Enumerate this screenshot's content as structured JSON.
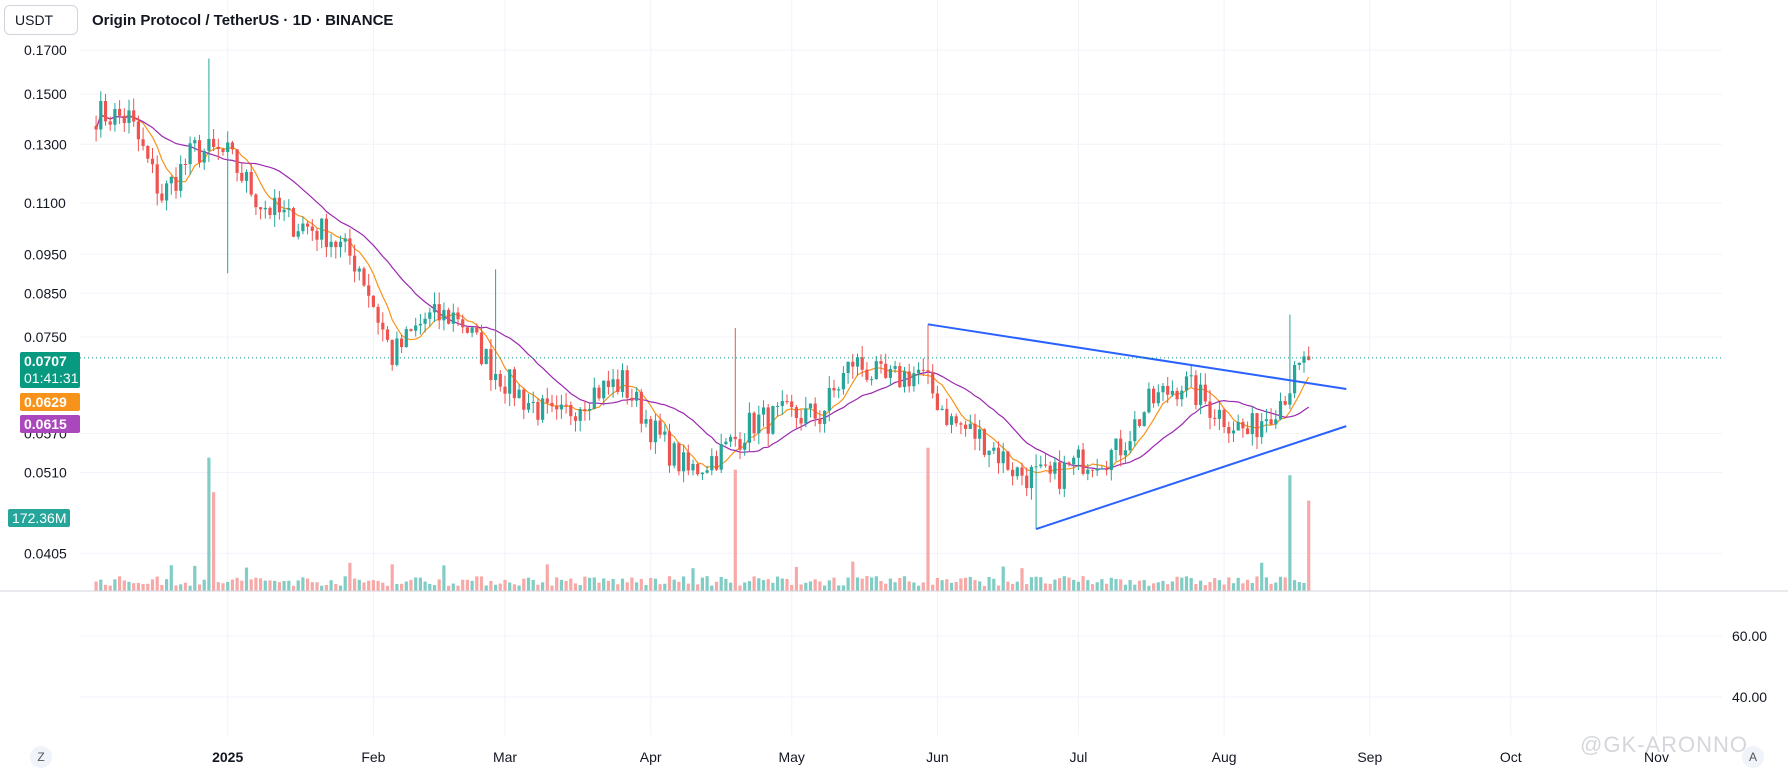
{
  "header": {
    "quote_currency": "USDT",
    "title": "Origin Protocol / TetherUS · 1D · BINANCE"
  },
  "watermark": "@GK-ARONNO",
  "controls": {
    "zoom_label": "Z",
    "auto_label": "A"
  },
  "badges": {
    "last_price": "0.0707",
    "countdown": "01:41:31",
    "ma_fast": "0.0629",
    "ma_slow": "0.0615",
    "volume": "172.36M"
  },
  "colors": {
    "up": "#26a69a",
    "down": "#ef5350",
    "ma_fast": "#f7931a",
    "ma_slow": "#9c27b0",
    "trendline": "#2962ff",
    "last_price": "#089981",
    "volume_up": "#7fcdc4",
    "volume_down": "#f7a9a7"
  },
  "chart_data": {
    "type": "candlestick",
    "symbol": "Origin Protocol / TetherUS",
    "interval": "1D",
    "exchange": "BINANCE",
    "price_axis_ticks": [
      "0.1700",
      "0.1500",
      "0.1300",
      "0.1100",
      "0.0950",
      "0.0850",
      "0.0750",
      "0.0570",
      "0.0510",
      "0.0405"
    ],
    "oscillator_axis_ticks": [
      "60.00",
      "40.00"
    ],
    "time_axis_ticks": [
      "2025",
      "Feb",
      "Mar",
      "Apr",
      "May",
      "Jun",
      "Jul",
      "Aug",
      "Sep",
      "Oct",
      "Nov"
    ],
    "y_scale": "log",
    "ylim": [
      0.037,
      0.175
    ],
    "last_price": 0.0707,
    "ma_fast_value": 0.0629,
    "ma_slow_value": 0.0615,
    "volume_last": "172.36M",
    "weekly_close": [
      [
        "2024-12-04",
        0.142
      ],
      [
        "2024-12-11",
        0.14
      ],
      [
        "2024-12-18",
        0.112
      ],
      [
        "2024-12-25",
        0.128
      ],
      [
        "2025-01-01",
        0.126
      ],
      [
        "2025-01-08",
        0.11
      ],
      [
        "2025-01-15",
        0.104
      ],
      [
        "2025-01-22",
        0.101
      ],
      [
        "2025-01-29",
        0.092
      ],
      [
        "2025-02-05",
        0.071
      ],
      [
        "2025-02-12",
        0.079
      ],
      [
        "2025-02-19",
        0.08
      ],
      [
        "2025-02-26",
        0.069
      ],
      [
        "2025-03-05",
        0.063
      ],
      [
        "2025-03-12",
        0.059
      ],
      [
        "2025-03-19",
        0.064
      ],
      [
        "2025-03-26",
        0.066
      ],
      [
        "2025-04-02",
        0.057
      ],
      [
        "2025-04-09",
        0.051
      ],
      [
        "2025-04-16",
        0.054
      ],
      [
        "2025-04-23",
        0.059
      ],
      [
        "2025-04-30",
        0.06
      ],
      [
        "2025-05-07",
        0.06
      ],
      [
        "2025-05-14",
        0.07
      ],
      [
        "2025-05-21",
        0.066
      ],
      [
        "2025-05-28",
        0.068
      ],
      [
        "2025-06-04",
        0.059
      ],
      [
        "2025-06-11",
        0.056
      ],
      [
        "2025-06-18",
        0.051
      ],
      [
        "2025-06-25",
        0.05
      ],
      [
        "2025-07-02",
        0.053
      ],
      [
        "2025-07-09",
        0.054
      ],
      [
        "2025-07-16",
        0.062
      ],
      [
        "2025-07-23",
        0.066
      ],
      [
        "2025-07-30",
        0.061
      ],
      [
        "2025-08-06",
        0.057
      ],
      [
        "2025-08-13",
        0.063
      ],
      [
        "2025-08-19",
        0.0707
      ]
    ],
    "trendlines": [
      {
        "from": [
          "2025-05-30",
          0.0778
        ],
        "to": [
          "2025-08-27",
          0.0647
        ]
      },
      {
        "from": [
          "2025-06-22",
          0.0434
        ],
        "to": [
          "2025-08-27",
          0.0582
        ]
      }
    ],
    "volume_spikes": [
      [
        "2024-12-28",
        "high"
      ],
      [
        "2024-12-29",
        "high"
      ],
      [
        "2025-04-19",
        "high"
      ],
      [
        "2025-05-30",
        "high"
      ],
      [
        "2025-08-15",
        "high"
      ],
      [
        "2025-08-19",
        "high"
      ]
    ]
  }
}
